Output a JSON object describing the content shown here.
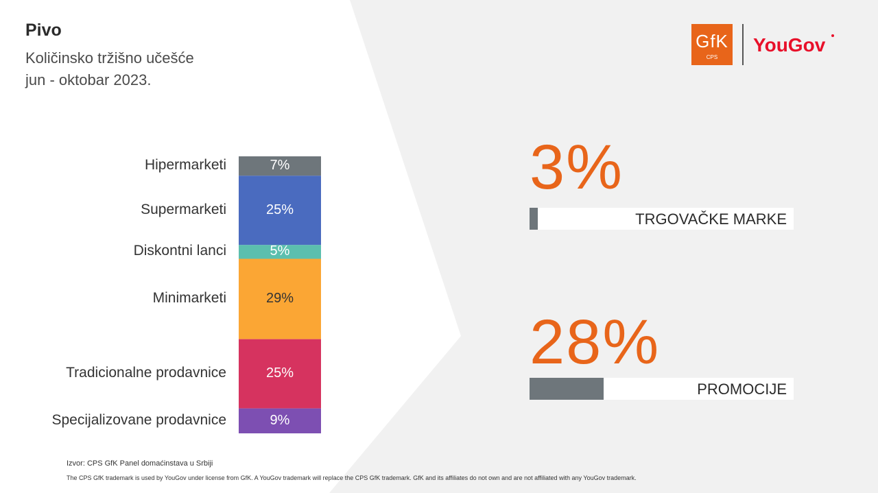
{
  "header": {
    "title": "Pivo",
    "subtitle_line1": "Količinsko tržišno učešće",
    "subtitle_line2": "jun - oktobar 2023."
  },
  "logos": {
    "gfk_text": "GfK",
    "gfk_sub": "CPS",
    "yougov_text": "YouGov",
    "gfk_color": "#e8651a",
    "yougov_color": "#e8102a"
  },
  "chart_data": {
    "type": "bar",
    "stacked": true,
    "categories": [
      "Hipermarketi",
      "Supermarketi",
      "Diskontni lanci",
      "Minimarketi",
      "Tradicionalne prodavnice",
      "Specijalizovane prodavnice"
    ],
    "values": [
      7,
      25,
      5,
      29,
      25,
      9
    ],
    "value_labels": [
      "7%",
      "25%",
      "5%",
      "29%",
      "25%",
      "9%"
    ],
    "colors": [
      "#6e767b",
      "#4a6bbf",
      "#5bbfae",
      "#fba634",
      "#d6335f",
      "#7d4fb2"
    ],
    "label_colors": [
      "#ffffff",
      "#ffffff",
      "#ffffff",
      "#333333",
      "#ffffff",
      "#ffffff"
    ]
  },
  "kpis": [
    {
      "value": "3%",
      "label": "TRGOVAČKE MARKE",
      "fraction": 0.03
    },
    {
      "value": "28%",
      "label": "PROMOCIJE",
      "fraction": 0.28
    }
  ],
  "kpi_colors": {
    "number": "#e8651a",
    "bar": "#6e767b"
  },
  "footer": {
    "source": "Izvor: CPS GfK Panel domaćinstava u Srbiji",
    "disclaimer": "The CPS GfK trademark is used by YouGov under license from GfK. A YouGov trademark will replace the CPS GfK trademark. GfK and its affiliates do not own and are not affiliated with any YouGov trademark."
  }
}
